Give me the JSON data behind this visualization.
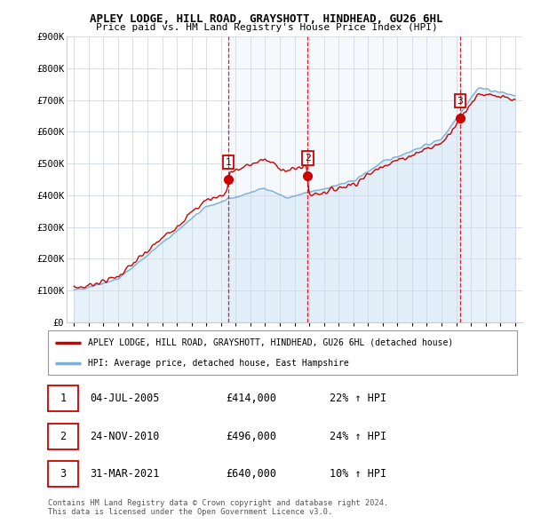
{
  "title_line1": "APLEY LODGE, HILL ROAD, GRAYSHOTT, HINDHEAD, GU26 6HL",
  "title_line2": "Price paid vs. HM Land Registry's House Price Index (HPI)",
  "background_color": "#ffffff",
  "plot_bg_color": "#ffffff",
  "grid_color": "#d0d8e8",
  "hpi_color": "#7bafd4",
  "hpi_fill_color": "#d0e4f5",
  "price_color": "#cc0000",
  "vline_color": "#cc0000",
  "ylim": [
    0,
    900000
  ],
  "yticks": [
    0,
    100000,
    200000,
    300000,
    400000,
    500000,
    600000,
    700000,
    800000,
    900000
  ],
  "ytick_labels": [
    "£0",
    "£100K",
    "£200K",
    "£300K",
    "£400K",
    "£500K",
    "£600K",
    "£700K",
    "£800K",
    "£900K"
  ],
  "sales": [
    {
      "date_num": 2005.5,
      "price": 414000,
      "label": "1"
    },
    {
      "date_num": 2010.9,
      "price": 496000,
      "label": "2"
    },
    {
      "date_num": 2021.25,
      "price": 640000,
      "label": "3"
    }
  ],
  "legend_property": "APLEY LODGE, HILL ROAD, GRAYSHOTT, HINDHEAD, GU26 6HL (detached house)",
  "legend_hpi": "HPI: Average price, detached house, East Hampshire",
  "table_rows": [
    {
      "num": "1",
      "date": "04-JUL-2005",
      "price": "£414,000",
      "change": "22% ↑ HPI"
    },
    {
      "num": "2",
      "date": "24-NOV-2010",
      "price": "£496,000",
      "change": "24% ↑ HPI"
    },
    {
      "num": "3",
      "date": "31-MAR-2021",
      "price": "£640,000",
      "change": "10% ↑ HPI"
    }
  ],
  "footnote1": "Contains HM Land Registry data © Crown copyright and database right 2024.",
  "footnote2": "This data is licensed under the Open Government Licence v3.0.",
  "xlim_start": 1994.5,
  "xlim_end": 2025.5
}
